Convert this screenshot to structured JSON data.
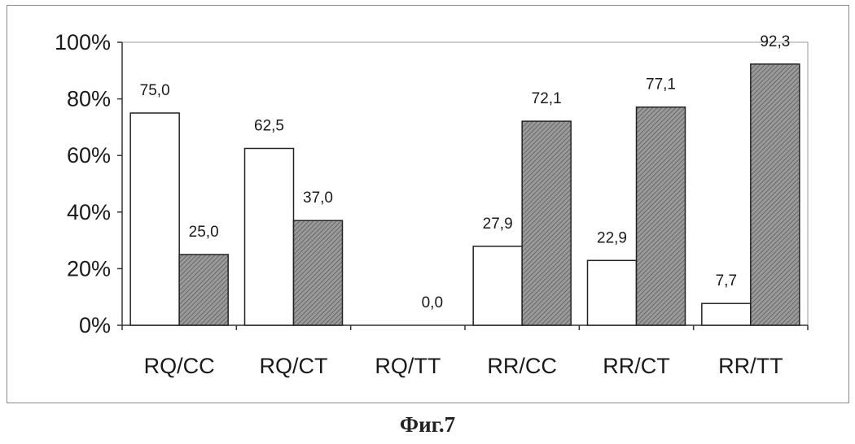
{
  "caption": "Фиг.7",
  "chart_data": {
    "type": "bar",
    "categories": [
      "RQ/CC",
      "RQ/CT",
      "RQ/TT",
      "RR/CC",
      "RR/CT",
      "RR/TT"
    ],
    "series": [
      {
        "values": [
          75.0,
          62.5,
          0.0,
          27.9,
          22.9,
          7.7
        ],
        "labels": [
          "75,0",
          "62,5",
          "",
          "27,9",
          "22,9",
          "7,7"
        ],
        "fill": "#ffffff"
      },
      {
        "values": [
          25.0,
          37.0,
          0.0,
          72.1,
          77.1,
          92.3
        ],
        "labels": [
          "25,0",
          "37,0",
          "0,0",
          "72,1",
          "77,1",
          "92,3"
        ],
        "fill": "#8c8c8c"
      }
    ],
    "ytick_labels": [
      "0%",
      "20%",
      "40%",
      "60%",
      "80%",
      "100%"
    ],
    "yticks": [
      0,
      20,
      40,
      60,
      80,
      100
    ],
    "ylim": [
      0,
      100
    ],
    "grid": false,
    "legend": "none",
    "title": "",
    "xlabel": "",
    "ylabel": ""
  }
}
